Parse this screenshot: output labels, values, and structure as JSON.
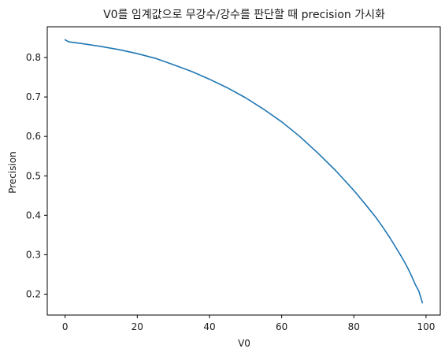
{
  "chart_data": {
    "type": "line",
    "title": "V0를 임계값으로 무강수/강수를 판단할 때 precision 가시화",
    "xlabel": "V0",
    "ylabel": "Precision",
    "xlim": [
      -4.95,
      103.95
    ],
    "ylim": [
      0.147,
      0.878
    ],
    "xticks": [
      0,
      20,
      40,
      60,
      80,
      100
    ],
    "xtick_labels": [
      "0",
      "20",
      "40",
      "60",
      "80",
      "100"
    ],
    "yticks": [
      0.2,
      0.3,
      0.4,
      0.5,
      0.6,
      0.7,
      0.8
    ],
    "ytick_labels": [
      "0.2",
      "0.3",
      "0.4",
      "0.5",
      "0.6",
      "0.7",
      "0.8"
    ],
    "grid": false,
    "legend": "none",
    "series": [
      {
        "color": "#1f77b4",
        "x": [
          0,
          1,
          5,
          10,
          15,
          20,
          25,
          30,
          35,
          40,
          45,
          50,
          55,
          60,
          65,
          70,
          75,
          80,
          83,
          86,
          88,
          90,
          92,
          93,
          94,
          95,
          96,
          97,
          98,
          99
        ],
        "y": [
          0.845,
          0.84,
          0.835,
          0.828,
          0.82,
          0.81,
          0.798,
          0.782,
          0.765,
          0.745,
          0.723,
          0.698,
          0.669,
          0.637,
          0.6,
          0.558,
          0.513,
          0.463,
          0.43,
          0.396,
          0.37,
          0.343,
          0.313,
          0.298,
          0.282,
          0.265,
          0.246,
          0.225,
          0.208,
          0.178
        ]
      }
    ]
  }
}
